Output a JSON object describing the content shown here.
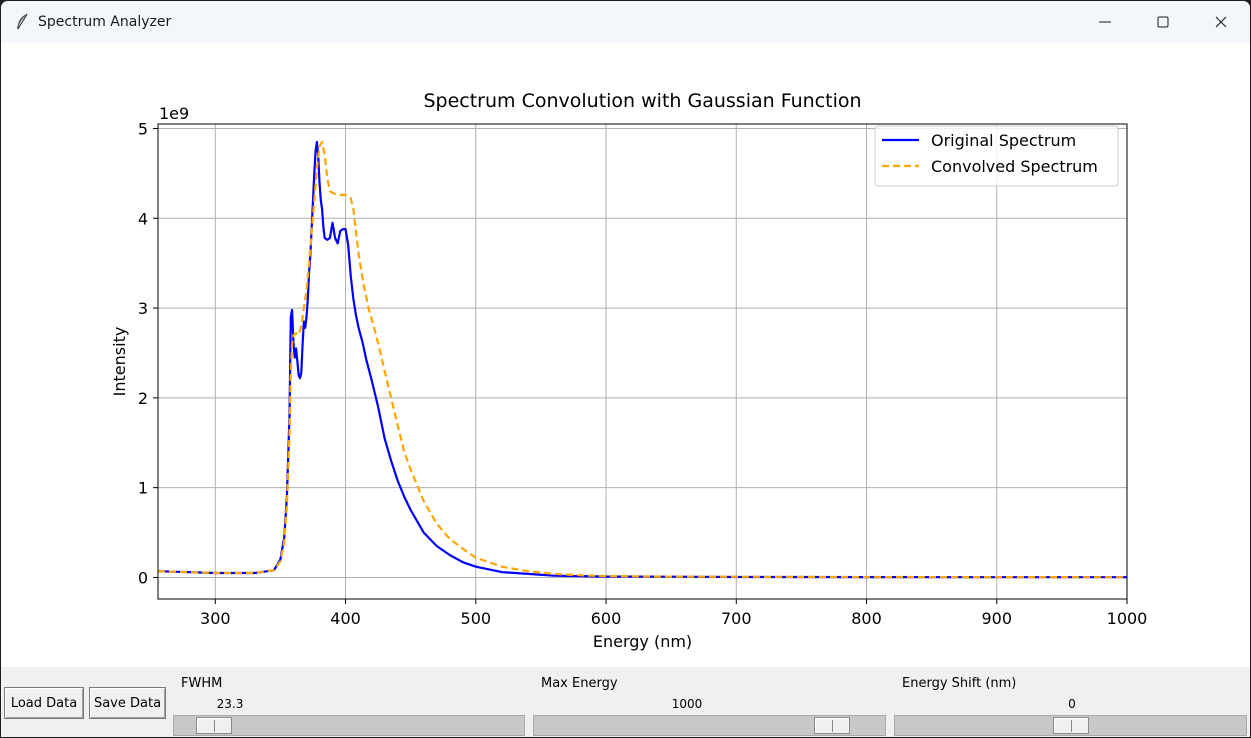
{
  "window": {
    "title": "Spectrum Analyzer",
    "icon": "feather-icon"
  },
  "controls": {
    "load_label": "Load Data",
    "save_label": "Save Data",
    "sliders": [
      {
        "label": "FWHM",
        "value": "23.3",
        "fraction": 0.07
      },
      {
        "label": "Max Energy",
        "value": "1000",
        "fraction": 0.89
      },
      {
        "label": "Energy Shift (nm)",
        "value": "0",
        "fraction": 0.5
      }
    ]
  },
  "chart_data": {
    "type": "line",
    "title": "Spectrum Convolution with Gaussian Function",
    "xlabel": "Energy (nm)",
    "ylabel": "Intensity",
    "y_multiplier_label": "1e9",
    "xlim": [
      256,
      1000
    ],
    "ylim": [
      -0.24,
      5.05
    ],
    "xticks": [
      300,
      400,
      500,
      600,
      700,
      800,
      900,
      1000
    ],
    "yticks": [
      0,
      1,
      2,
      3,
      4,
      5
    ],
    "grid": true,
    "legend_position": "top-right",
    "series": [
      {
        "name": "Original Spectrum",
        "color": "#0000ff",
        "style": "solid",
        "x": [
          256,
          300,
          330,
          345,
          350,
          353,
          355,
          357,
          358,
          359,
          360,
          361,
          362,
          363,
          364,
          365,
          366,
          367,
          368,
          369,
          370,
          371,
          372,
          373,
          374,
          375,
          376,
          377,
          378,
          379,
          380,
          381,
          382,
          383,
          384,
          386,
          388,
          390,
          392,
          394,
          396,
          398,
          400,
          402,
          404,
          406,
          408,
          410,
          413,
          416,
          420,
          425,
          430,
          435,
          440,
          445,
          450,
          460,
          470,
          480,
          490,
          500,
          520,
          540,
          560,
          580,
          600,
          650,
          700,
          800,
          900,
          1000
        ],
        "y": [
          0.07,
          0.05,
          0.05,
          0.08,
          0.2,
          0.45,
          0.9,
          1.8,
          2.9,
          2.98,
          2.6,
          2.45,
          2.55,
          2.4,
          2.25,
          2.22,
          2.28,
          2.6,
          2.85,
          2.78,
          2.9,
          3.1,
          3.4,
          3.6,
          3.9,
          4.2,
          4.5,
          4.75,
          4.85,
          4.7,
          4.4,
          4.2,
          4.1,
          3.9,
          3.78,
          3.76,
          3.78,
          3.95,
          3.78,
          3.72,
          3.86,
          3.88,
          3.88,
          3.7,
          3.35,
          3.1,
          2.92,
          2.78,
          2.62,
          2.42,
          2.2,
          1.9,
          1.55,
          1.3,
          1.08,
          0.9,
          0.75,
          0.5,
          0.35,
          0.25,
          0.17,
          0.12,
          0.06,
          0.04,
          0.02,
          0.015,
          0.01,
          0.008,
          0.005,
          0.004,
          0.003,
          0.003
        ]
      },
      {
        "name": "Convolved Spectrum",
        "color": "#ffa500",
        "style": "dashed",
        "x": [
          256,
          300,
          330,
          345,
          350,
          353,
          355,
          357,
          358,
          359,
          360,
          362,
          364,
          366,
          368,
          370,
          372,
          374,
          376,
          378,
          380,
          382,
          384,
          386,
          388,
          392,
          396,
          400,
          404,
          406,
          408,
          410,
          414,
          418,
          422,
          426,
          430,
          435,
          440,
          445,
          450,
          460,
          470,
          480,
          490,
          500,
          520,
          540,
          560,
          580,
          600,
          650,
          700,
          800,
          900,
          1000
        ],
        "y": [
          0.07,
          0.05,
          0.05,
          0.08,
          0.18,
          0.4,
          0.8,
          1.6,
          2.3,
          2.6,
          2.7,
          2.72,
          2.7,
          2.8,
          3.0,
          3.2,
          3.5,
          3.85,
          4.2,
          4.55,
          4.8,
          4.85,
          4.7,
          4.45,
          4.3,
          4.27,
          4.26,
          4.26,
          4.22,
          4.1,
          3.85,
          3.6,
          3.25,
          2.98,
          2.78,
          2.55,
          2.3,
          2.0,
          1.7,
          1.4,
          1.2,
          0.85,
          0.6,
          0.43,
          0.32,
          0.22,
          0.12,
          0.07,
          0.04,
          0.025,
          0.015,
          0.01,
          0.007,
          0.005,
          0.004,
          0.003
        ]
      }
    ]
  }
}
